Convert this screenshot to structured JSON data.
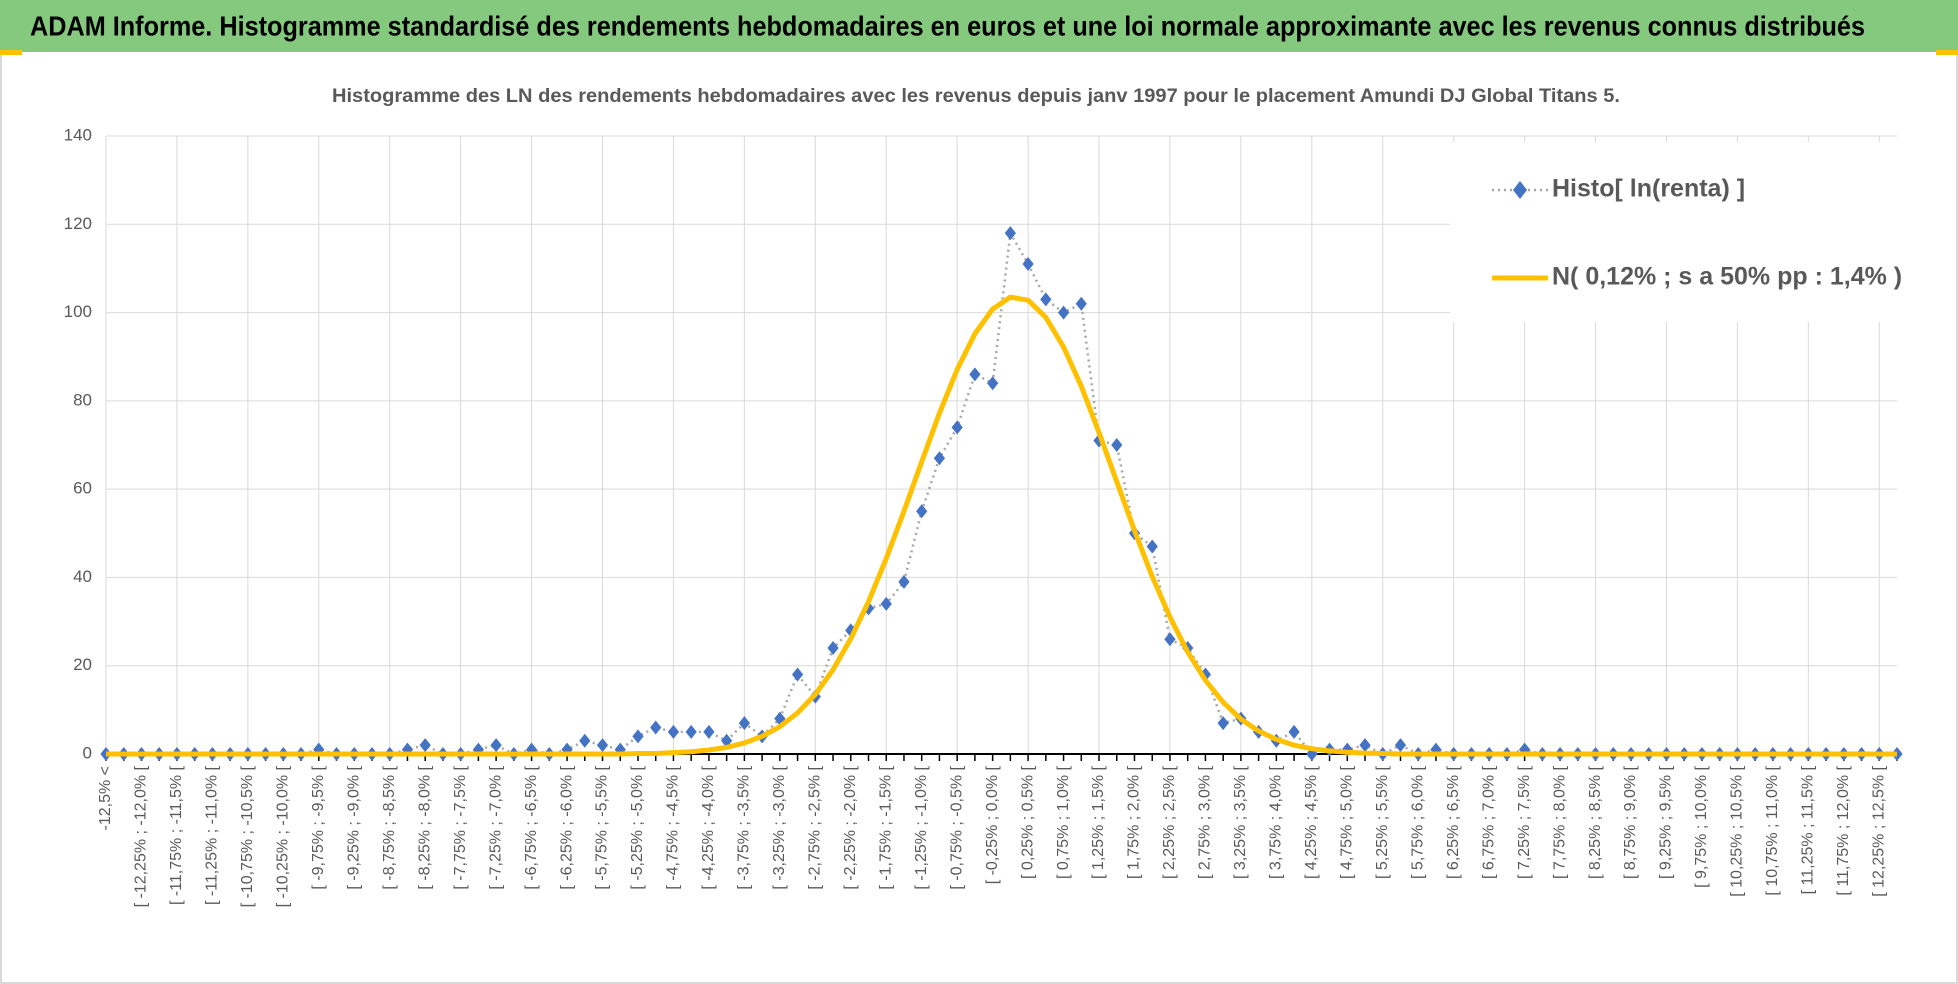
{
  "header": {
    "title": "ADAM Informe. Histogramme standardisé des rendements hebdomadaires en euros et une loi normale approximante avec les revenus connus distribués"
  },
  "chart_data": {
    "type": "line",
    "title": "Histogramme  des LN des rendements hebdomadaires avec les revenus depuis janv 1997 pour le placement Amundi DJ Global Titans  5.",
    "categories": [
      "-12,5% <",
      null,
      "[ -12,25% ; -12,0% [",
      null,
      "[ -11,75% ; -11,5% [",
      null,
      "[ -11,25% ; -11,0% [",
      null,
      "[ -10,75% ; -10,5% [",
      null,
      "[ -10,25% ; -10,0% [",
      null,
      "[ -9,75% ; -9,5% [",
      null,
      "[ -9,25% ; -9,0% [",
      null,
      "[ -8,75% ; -8,5% [",
      null,
      "[ -8,25% ; -8,0% [",
      null,
      "[ -7,75% ; -7,5% [",
      null,
      "[ -7,25% ; -7,0% [",
      null,
      "[ -6,75% ; -6,5% [",
      null,
      "[ -6,25% ; -6,0% [",
      null,
      "[ -5,75% ; -5,5% [",
      null,
      "[ -5,25% ; -5,0% [",
      null,
      "[ -4,75% ; -4,5% [",
      null,
      "[ -4,25% ; -4,0% [",
      null,
      "[ -3,75% ; -3,5% [",
      null,
      "[ -3,25% ; -3,0% [",
      null,
      "[ -2,75% ; -2,5% [",
      null,
      "[ -2,25% ; -2,0% [",
      null,
      "[ -1,75% ; -1,5% [",
      null,
      "[ -1,25% ; -1,0% [",
      null,
      "[ -0,75% ; -0,5% [",
      null,
      "[ -0,25% ; 0,0% [",
      null,
      "[ 0,25% ; 0,5% [",
      null,
      "[ 0,75% ; 1,0% [",
      null,
      "[ 1,25% ; 1,5% [",
      null,
      "[ 1,75% ; 2,0% [",
      null,
      "[ 2,25% ; 2,5% [",
      null,
      "[ 2,75% ; 3,0% [",
      null,
      "[ 3,25% ; 3,5% [",
      null,
      "[ 3,75% ; 4,0% [",
      null,
      "[ 4,25% ; 4,5% [",
      null,
      "[ 4,75% ; 5,0% [",
      null,
      "[ 5,25% ; 5,5% [",
      null,
      "[ 5,75% ; 6,0% [",
      null,
      "[ 6,25% ; 6,5% [",
      null,
      "[ 6,75% ; 7,0% [",
      null,
      "[ 7,25% ; 7,5% [",
      null,
      "[ 7,75% ; 8,0% [",
      null,
      "[ 8,25% ; 8,5% [",
      null,
      "[ 8,75% ; 9,0% [",
      null,
      "[ 9,25% ; 9,5% [",
      null,
      "[ 9,75% ; 10,0% [",
      null,
      "[ 10,25% ; 10,5% [",
      null,
      "[ 10,75% ; 11,0% [",
      null,
      "[ 11,25% ; 11,5% [",
      null,
      "[ 11,75% ; 12,0% [",
      null,
      "[ 12,25% ; 12,5% [",
      null
    ],
    "series": [
      {
        "name": "Histo[ ln(renta) ]",
        "color": "#4472c4",
        "marker": "diamond",
        "line_color": "#a6a6a6",
        "line_dash": "dotted",
        "values": [
          0,
          0,
          0,
          0,
          0,
          0,
          0,
          0,
          0,
          0,
          0,
          0,
          1,
          0,
          0,
          0,
          0,
          1,
          2,
          0,
          0,
          1,
          2,
          0,
          1,
          0,
          1,
          3,
          2,
          1,
          4,
          6,
          5,
          5,
          5,
          3,
          7,
          4,
          8,
          18,
          13,
          24,
          28,
          33,
          34,
          39,
          55,
          67,
          74,
          86,
          84,
          118,
          111,
          103,
          100,
          102,
          71,
          70,
          50,
          47,
          26,
          24,
          18,
          7,
          8,
          5,
          3,
          5,
          0,
          1,
          1,
          2,
          0,
          2,
          0,
          1,
          0,
          0,
          0,
          0,
          1,
          0,
          0,
          0,
          0,
          0,
          0,
          0,
          0,
          0,
          0,
          0,
          0,
          0,
          0,
          0,
          0,
          0,
          0,
          0,
          0,
          0
        ]
      },
      {
        "name": "N( 0,12% ; s a 50% pp : 1,4% )",
        "color": "#ffc000",
        "values": [
          0,
          0,
          0,
          0,
          0,
          0,
          0,
          0,
          0,
          0,
          0,
          0,
          0,
          0,
          0,
          0,
          0,
          0,
          0,
          0,
          0,
          0,
          0,
          0,
          0,
          0,
          0,
          0,
          0,
          0,
          0.1,
          0.1,
          0.3,
          0.5,
          0.9,
          1.5,
          2.5,
          4,
          6.2,
          9.3,
          13.5,
          19.1,
          26.1,
          34.5,
          44.3,
          55,
          66.2,
          77.2,
          87.1,
          95.2,
          100.8,
          103.5,
          102.8,
          98.9,
          92.2,
          83.3,
          72.8,
          61.7,
          50.6,
          40.2,
          31,
          23.1,
          16.7,
          11.7,
          7.9,
          5.2,
          3.3,
          2,
          1.2,
          0.7,
          0.4,
          0.2,
          0.1,
          0,
          0,
          0,
          0,
          0,
          0,
          0,
          0,
          0,
          0,
          0,
          0,
          0,
          0,
          0,
          0,
          0,
          0,
          0,
          0,
          0,
          0,
          0,
          0,
          0,
          0,
          0,
          0,
          0
        ]
      }
    ],
    "ylim": [
      0,
      140
    ],
    "yticks": [
      0,
      20,
      40,
      60,
      80,
      100,
      120,
      140
    ],
    "grid": true,
    "legend": "top-right"
  }
}
